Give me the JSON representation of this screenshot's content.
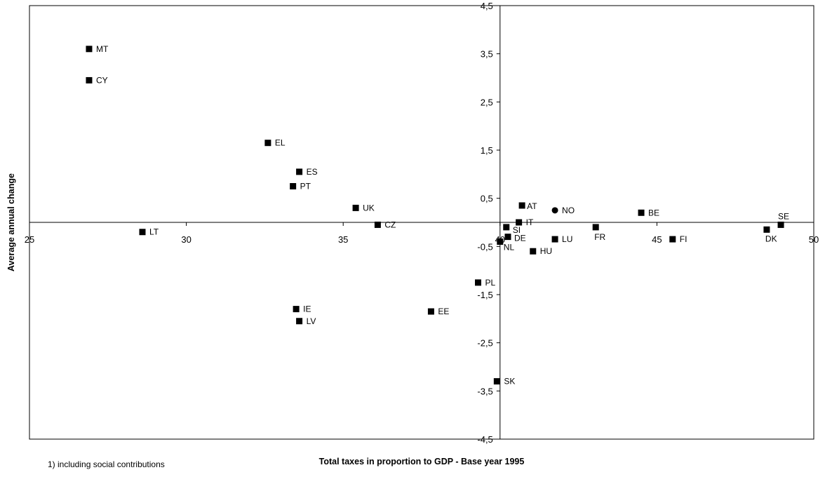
{
  "chart_data": {
    "type": "scatter",
    "xlabel": "Total taxes in proportion to GDP - Base year 1995",
    "ylabel": "Average annual change",
    "xlim": [
      25,
      50
    ],
    "ylim": [
      -4.5,
      4.5
    ],
    "x_ticks": [
      25,
      30,
      35,
      40,
      45,
      50
    ],
    "y_ticks": [
      -4.5,
      -3.5,
      -2.5,
      -1.5,
      -0.5,
      0.5,
      1.5,
      2.5,
      3.5,
      4.5
    ],
    "x_tick_labels": [
      "25",
      "30",
      "35",
      "40",
      "45",
      "50"
    ],
    "y_tick_labels": [
      "-4,5",
      "-3,5",
      "-2,5",
      "-1,5",
      "-0,5",
      "0,5",
      "1,5",
      "2,5",
      "3,5",
      "4,5"
    ],
    "crossing": {
      "x": 40.0,
      "y": 0.0
    },
    "grid": false,
    "points": [
      {
        "label": "MT",
        "x": 26.9,
        "y": 3.6,
        "marker": "square"
      },
      {
        "label": "CY",
        "x": 26.9,
        "y": 2.95,
        "marker": "square"
      },
      {
        "label": "LT",
        "x": 28.6,
        "y": -0.2,
        "marker": "square"
      },
      {
        "label": "EL",
        "x": 32.6,
        "y": 1.65,
        "marker": "square"
      },
      {
        "label": "ES",
        "x": 33.6,
        "y": 1.05,
        "marker": "square"
      },
      {
        "label": "PT",
        "x": 33.4,
        "y": 0.75,
        "marker": "square"
      },
      {
        "label": "UK",
        "x": 35.4,
        "y": 0.3,
        "marker": "square"
      },
      {
        "label": "CZ",
        "x": 36.1,
        "y": -0.05,
        "marker": "square"
      },
      {
        "label": "IE",
        "x": 33.5,
        "y": -1.8,
        "marker": "square"
      },
      {
        "label": "LV",
        "x": 33.6,
        "y": -2.05,
        "marker": "square"
      },
      {
        "label": "EE",
        "x": 37.8,
        "y": -1.85,
        "marker": "square"
      },
      {
        "label": "PL",
        "x": 39.3,
        "y": -1.25,
        "marker": "square"
      },
      {
        "label": "SK",
        "x": 39.9,
        "y": -3.3,
        "marker": "square"
      },
      {
        "label": "NL",
        "x": 40.0,
        "y": -0.4,
        "marker": "square"
      },
      {
        "label": "SI",
        "x": 40.2,
        "y": -0.1,
        "marker": "square"
      },
      {
        "label": "DE",
        "x": 40.25,
        "y": -0.3,
        "marker": "square"
      },
      {
        "label": "IT",
        "x": 40.6,
        "y": 0.0,
        "marker": "square"
      },
      {
        "label": "AT",
        "x": 40.7,
        "y": 0.35,
        "marker": "square"
      },
      {
        "label": "HU",
        "x": 41.05,
        "y": -0.6,
        "marker": "square"
      },
      {
        "label": "NO",
        "x": 41.75,
        "y": 0.25,
        "marker": "circle"
      },
      {
        "label": "LU",
        "x": 41.75,
        "y": -0.35,
        "marker": "square"
      },
      {
        "label": "FR",
        "x": 43.05,
        "y": -0.1,
        "marker": "square"
      },
      {
        "label": "BE",
        "x": 44.5,
        "y": 0.2,
        "marker": "square"
      },
      {
        "label": "FI",
        "x": 45.5,
        "y": -0.35,
        "marker": "square"
      },
      {
        "label": "DK",
        "x": 48.5,
        "y": -0.15,
        "marker": "square"
      },
      {
        "label": "SE",
        "x": 48.95,
        "y": -0.05,
        "marker": "square"
      }
    ]
  },
  "footnote": "1) including social contributions"
}
